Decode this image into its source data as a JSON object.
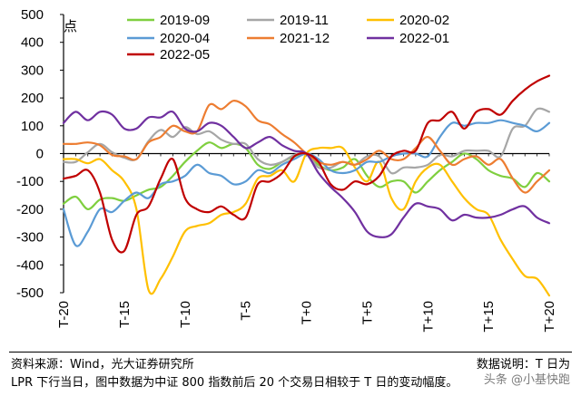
{
  "chart_data": {
    "type": "line",
    "unit_label": "点",
    "ylim": [
      -500,
      500
    ],
    "yticks": [
      500,
      400,
      300,
      200,
      100,
      0,
      -100,
      -200,
      -300,
      -400,
      -500
    ],
    "x": [
      -20,
      -19,
      -18,
      -17,
      -16,
      -15,
      -14,
      -13,
      -12,
      -11,
      -10,
      -9,
      -8,
      -7,
      -6,
      -5,
      -4,
      -3,
      -2,
      -1,
      0,
      1,
      2,
      3,
      4,
      5,
      6,
      7,
      8,
      9,
      10,
      11,
      12,
      13,
      14,
      15,
      16,
      17,
      18,
      19,
      20
    ],
    "xticks": [
      {
        "x": -20,
        "label": "T-20"
      },
      {
        "x": -15,
        "label": "T-15"
      },
      {
        "x": -10,
        "label": "T-10"
      },
      {
        "x": -5,
        "label": "T-5"
      },
      {
        "x": 0,
        "label": "T+0"
      },
      {
        "x": 5,
        "label": "T+5"
      },
      {
        "x": 10,
        "label": "T+10"
      },
      {
        "x": 15,
        "label": "T+15"
      },
      {
        "x": 20,
        "label": "T+20"
      }
    ],
    "grid": false,
    "legend_position": "top",
    "series": [
      {
        "name": "2019-09",
        "color": "#7fcf3f",
        "values": [
          -180,
          -155,
          -200,
          -165,
          -160,
          -170,
          -150,
          -130,
          -120,
          -80,
          -30,
          10,
          40,
          20,
          35,
          20,
          -40,
          -55,
          -30,
          -10,
          0,
          -40,
          -60,
          -50,
          -20,
          -80,
          -120,
          -100,
          -100,
          -140,
          -100,
          -60,
          -30,
          0,
          -20,
          -60,
          -80,
          -90,
          -120,
          -70,
          -100
        ]
      },
      {
        "name": "2019-11",
        "color": "#a6a6a6",
        "values": [
          -30,
          -30,
          5,
          35,
          5,
          -15,
          -20,
          45,
          85,
          60,
          95,
          70,
          80,
          50,
          35,
          35,
          -20,
          -40,
          -30,
          -5,
          0,
          -50,
          -50,
          -30,
          -40,
          -10,
          -10,
          -70,
          -50,
          -50,
          -40,
          -5,
          -10,
          10,
          10,
          10,
          -10,
          90,
          100,
          160,
          150
        ]
      },
      {
        "name": "2020-02",
        "color": "#ffc000",
        "values": [
          -20,
          -20,
          -35,
          -20,
          -60,
          -100,
          -200,
          -490,
          -450,
          -370,
          -280,
          -260,
          -250,
          -220,
          -210,
          -180,
          -90,
          -80,
          -60,
          -100,
          0,
          20,
          20,
          20,
          -50,
          -100,
          -30,
          -160,
          -200,
          -100,
          -50,
          -40,
          -100,
          -160,
          -200,
          -220,
          -310,
          -380,
          -440,
          -450,
          -510
        ]
      },
      {
        "name": "2020-04",
        "color": "#5b9bd5",
        "values": [
          -200,
          -330,
          -280,
          -200,
          -210,
          -170,
          -140,
          -160,
          -110,
          -100,
          -80,
          -40,
          -70,
          -80,
          -110,
          -100,
          -60,
          -70,
          -40,
          -20,
          0,
          -20,
          -60,
          -70,
          -60,
          -30,
          -30,
          -10,
          0,
          0,
          -10,
          60,
          110,
          100,
          110,
          110,
          120,
          110,
          100,
          80,
          110
        ]
      },
      {
        "name": "2021-12",
        "color": "#ed7d31",
        "values": [
          35,
          35,
          40,
          30,
          -5,
          -10,
          -20,
          40,
          60,
          100,
          80,
          80,
          175,
          160,
          190,
          170,
          120,
          105,
          70,
          40,
          0,
          -30,
          -40,
          -30,
          -40,
          -20,
          10,
          -20,
          -20,
          20,
          60,
          10,
          -40,
          -20,
          -10,
          -40,
          -20,
          -90,
          -140,
          -100,
          -60
        ]
      },
      {
        "name": "2022-01",
        "color": "#7030a0",
        "values": [
          110,
          150,
          120,
          150,
          140,
          90,
          90,
          130,
          130,
          150,
          90,
          80,
          110,
          100,
          60,
          20,
          40,
          60,
          30,
          10,
          0,
          -70,
          -120,
          -160,
          -210,
          -280,
          -300,
          -290,
          -230,
          -180,
          -190,
          -200,
          -240,
          -220,
          -230,
          -230,
          -220,
          -200,
          -190,
          -230,
          -250
        ]
      },
      {
        "name": "2022-05",
        "color": "#c00000",
        "values": [
          -90,
          -80,
          -60,
          -140,
          -310,
          -350,
          -220,
          -190,
          -90,
          -20,
          -160,
          -200,
          -210,
          -190,
          -220,
          -230,
          -110,
          -100,
          -70,
          -10,
          0,
          -30,
          -110,
          -130,
          -100,
          -110,
          -80,
          -10,
          10,
          10,
          110,
          120,
          150,
          90,
          150,
          160,
          140,
          190,
          230,
          260,
          280
        ]
      }
    ]
  },
  "footer": {
    "source": "资料来源：Wind，光大证券研究所",
    "note_title": "数据说明：T 日为",
    "note_body": "LPR 下行当日，图中数据为中证 800 指数前后 20 个交易日相较于 T 日的变动幅度。",
    "watermark": "头条 @小基快跑"
  }
}
